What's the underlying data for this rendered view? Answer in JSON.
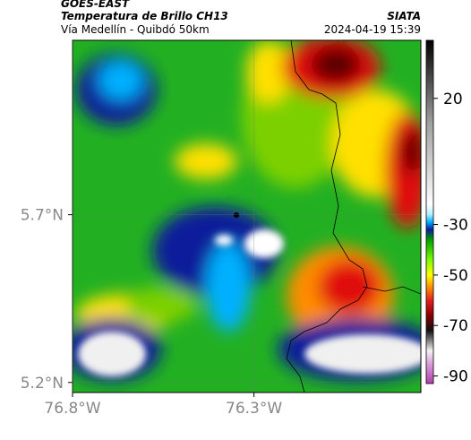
{
  "header": {
    "title": "GOES-EAST",
    "subtitle": "Temperatura de Brillo CH13",
    "route": "Vía Medellín - Quibdó 50km",
    "source": "SIATA",
    "timestamp": "2024-04-19 15:39"
  },
  "map": {
    "latlim": [
      5.17,
      6.22
    ],
    "lonlim": [
      -76.8,
      -75.84
    ],
    "latticks": [
      {
        "value": 5.7,
        "label": "5.7°N"
      },
      {
        "value": 5.2,
        "label": "5.2°N"
      }
    ],
    "lonticks": [
      {
        "value": -76.8,
        "label": "76.8°W"
      },
      {
        "value": -76.3,
        "label": "76.3°W"
      }
    ],
    "grid": true
  },
  "colorbar": {
    "lim": [
      -93,
      43
    ],
    "ticks": [
      20,
      -30,
      -50,
      -70,
      -90
    ],
    "stops": [
      [
        -93,
        "#b03fb0"
      ],
      [
        -85,
        "#d9a0d9"
      ],
      [
        -80,
        "#f2f2f2"
      ],
      [
        -76,
        "#808080"
      ],
      [
        -72,
        "#111111"
      ],
      [
        -66,
        "#8b0000"
      ],
      [
        -60,
        "#e62020"
      ],
      [
        -55,
        "#ff8c00"
      ],
      [
        -50,
        "#ffff00"
      ],
      [
        -44,
        "#7cfc00"
      ],
      [
        -36,
        "#00a000"
      ],
      [
        -32,
        "#0a1a9a"
      ],
      [
        -29,
        "#00b0ff"
      ],
      [
        -26,
        "#b0f0ff"
      ],
      [
        -22,
        "#ffffff"
      ],
      [
        10,
        "#a0a0a0"
      ],
      [
        43,
        "#000000"
      ]
    ]
  }
}
